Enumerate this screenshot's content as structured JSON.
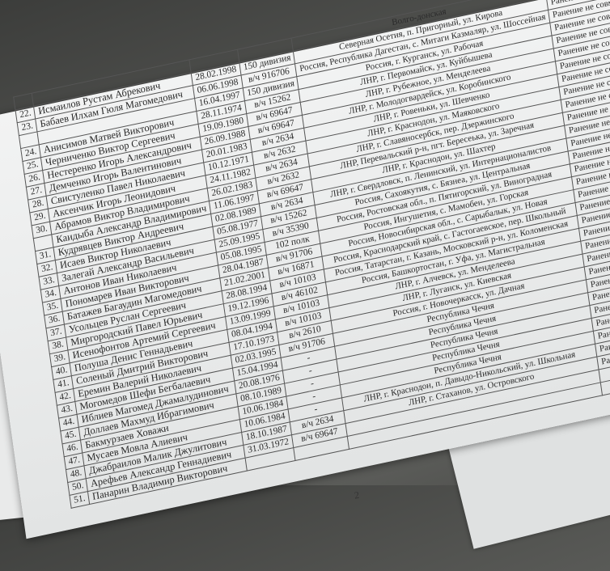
{
  "document": {
    "page_number": "2",
    "status_text": "Ранение не совместимое с жизнью",
    "header_fragment": "Волго-донская",
    "rows": [
      {
        "n": "22.",
        "name": "Исмаилов Рустам Абрекович",
        "date": "28.02.1998",
        "unit": "150 дивизия",
        "address": "Северная Осетия, п. Пригорный, ул. Кирова"
      },
      {
        "n": "23.",
        "name": "Бабаев Илхам Гюля Магомедович",
        "date": "06.06.1998",
        "unit": "в/ч 916706",
        "address": "Россия, Республика Дагестан, с. Митаги Казмаляр, ул. Шоссейная"
      },
      {
        "n": "",
        "name": "",
        "date": "16.04.1997",
        "unit": "150 дивизия",
        "address": "Россия, г. Курганск, ул. Рабочая"
      },
      {
        "n": "24.",
        "name": "Анисимов Матвей Викторович",
        "date": "28.11.1974",
        "unit": "в/ч 15262",
        "address": "ЛНР, г. Первомайск, ул. Куйбышева"
      },
      {
        "n": "25.",
        "name": "Черниченко Виктор Сергеевич",
        "date": "19.09.1980",
        "unit": "в/ч 69647",
        "address": "ЛНР, г. Рубежное, ул. Менделеева"
      },
      {
        "n": "26.",
        "name": "Нестеренко Игорь Александрович",
        "date": "26.09.1988",
        "unit": "в/ч 69647",
        "address": "ЛНР, г. Молодогвардейск, ул. Коробинского"
      },
      {
        "n": "27.",
        "name": "Демченко Игорь Валентинович",
        "date": "20.01.1983",
        "unit": "в/ч 2634",
        "address": "ЛНР, г. Ровеньки, ул. Шевченко"
      },
      {
        "n": "28.",
        "name": "Свистуленко Павел Николаевич",
        "date": "10.12.1971",
        "unit": "в/ч 2632",
        "address": "ЛНР, г. Краснодон, ул. Маяковского"
      },
      {
        "n": "29.",
        "name": "Аксенчик Игорь Леонидович",
        "date": "24.11.1982",
        "unit": "в/ч 2634",
        "address": "ЛНР, г. Славяносербск, пер. Дзержинского"
      },
      {
        "n": "30.",
        "name": "Абрамов Виктор Владимирович",
        "date": "26.02.1983",
        "unit": "в/ч 2632",
        "address": "ЛНР, Перевальский р-н, пгт. Бересеька, ул. Заречная"
      },
      {
        "n": "",
        "name": "Каидыба Александр Владимирович",
        "date": "11.06.1997",
        "unit": "в/ч 69647",
        "address": "ЛНР, г. Краснодон, ул. Шахтер"
      },
      {
        "n": "31.",
        "name": "Кудрявцев Виктор Андреевич",
        "date": "02.08.1989",
        "unit": "в/ч 2634",
        "address": "ЛНР, г. Свердловск, п. Ленинский, ул. Интернационалистов"
      },
      {
        "n": "32.",
        "name": "Исаев Виктор Николаевич",
        "date": "05.08.1977",
        "unit": "в/ч 15262",
        "address": "Россия, Сахоякутия, с. Бязнеа, ул. Центральная"
      },
      {
        "n": "33.",
        "name": "Залегай Александр Васильевич",
        "date": "25.09.1995",
        "unit": "в/ч 35390",
        "address": "Россия, Ростовская обл., п. Пятигорский, ул. Виноградная"
      },
      {
        "n": "34.",
        "name": "Антонов Иван Николаевич",
        "date": "05.08.1995",
        "unit": "102 полк",
        "address": "Россия, Ингушетия, с. Мамобен, ул. Горская"
      },
      {
        "n": "35.",
        "name": "Пономарев Иван Викторович",
        "date": "28.04.1987",
        "unit": "в/ч 91706",
        "address": "Россия, Новосибирская обл., с. Сарыбалык, ул. Новая"
      },
      {
        "n": "36.",
        "name": "Батажев Багаудин Магомедович",
        "date": "21.02.2001",
        "unit": "в/ч 16871",
        "address": "Россия, Краснодарский край, с. Гастогаевское, пер. Школьный"
      },
      {
        "n": "37.",
        "name": "Усольцев Руслан Сергеевич",
        "date": "28.08.1994",
        "unit": "в/ч 10103",
        "address": "Россия, Татарстан, г. Казань, Московский р-н, ул. Коломенская"
      },
      {
        "n": "38.",
        "name": "Миргородский Павел Юрьевич",
        "date": "19.12.1996",
        "unit": "в/ч 46102",
        "address": "Россия, Башкортостан, г. Уфа, ул. Магистральная"
      },
      {
        "n": "39.",
        "name": "Исенофонтов Артемий Сергеевич",
        "date": "13.09.1999",
        "unit": "в/ч 10103",
        "address": "ЛНР, г. Алчевск, ул. Менделеева"
      },
      {
        "n": "40.",
        "name": "Полуша Денис Геннадьевич",
        "date": "08.04.1994",
        "unit": "в/ч 10103",
        "address": "ЛНР, г. Луганск, ул. Киевская"
      },
      {
        "n": "41.",
        "name": "Соленый Дмитрий Викторович",
        "date": "17.10.1973",
        "unit": "в/ч 2610",
        "address": "Россия, г. Новочеркасск, ул. Дачная"
      },
      {
        "n": "42.",
        "name": "Еремин Валерий Николаевич",
        "date": "02.03.1995",
        "unit": "в/ч 91706",
        "address": "Республика Чечня"
      },
      {
        "n": "43.",
        "name": "Могомедов Шефи Бегбалаевич",
        "date": "15.04.1994",
        "unit": "-",
        "address": "Республика Чечня"
      },
      {
        "n": "44.",
        "name": "Иблиев Магомед Джамалудинович",
        "date": "20.08.1976",
        "unit": "-",
        "address": "Республика Чечня"
      },
      {
        "n": "45.",
        "name": "Доллаев Махмуд Ибрагимович",
        "date": "08.10.1989",
        "unit": "-",
        "address": "Республика Чечня"
      },
      {
        "n": "46.",
        "name": "Бакмурзаев Ховажи",
        "date": "10.06.1984",
        "unit": "-",
        "address": "Республика Чечня"
      },
      {
        "n": "47.",
        "name": "Мусаев Мовла Алиевич",
        "date": "10.06.1984",
        "unit": "-",
        "address": "ЛНР, г. Краснодон, п. Давыдо-Никольский, ул. Школьная"
      },
      {
        "n": "48.",
        "name": "Джабраилов Малик Джулитович",
        "date": "18.10.1987",
        "unit": "в/ч 2634",
        "address": "ЛНР, г. Стаханов, ул. Островского"
      },
      {
        "n": "50.",
        "name": "Арефьев Александр Геннадиевич",
        "date": "31.03.1972",
        "unit": "в/ч 69647",
        "address": ""
      },
      {
        "n": "51.",
        "name": "Панарин Владимир Викторович",
        "date": "",
        "unit": "",
        "address": ""
      }
    ]
  }
}
